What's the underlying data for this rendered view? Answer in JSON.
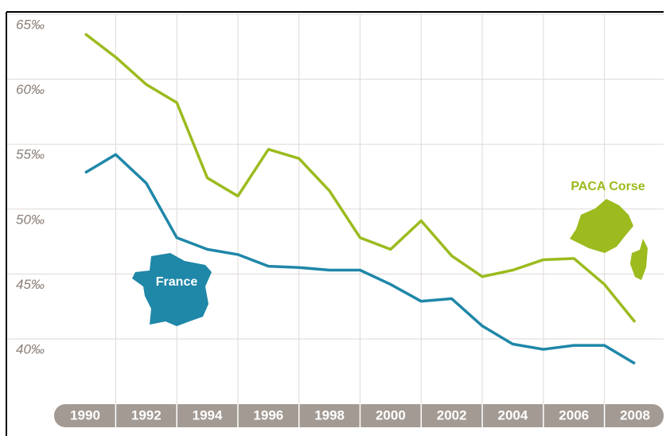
{
  "chart_data": {
    "type": "line",
    "x": [
      1990,
      1991,
      1992,
      1993,
      1994,
      1995,
      1996,
      1997,
      1998,
      1999,
      2000,
      2001,
      2002,
      2003,
      2004,
      2005,
      2006,
      2007,
      2008
    ],
    "series": [
      {
        "name": "PACA Corse",
        "color": "#9bbb1e",
        "values": [
          63.5,
          61.7,
          59.6,
          58.2,
          52.4,
          51.0,
          54.6,
          53.9,
          51.4,
          47.8,
          46.9,
          49.1,
          46.4,
          44.8,
          45.3,
          46.1,
          46.2,
          44.2,
          41.3
        ]
      },
      {
        "name": "France",
        "color": "#1f87a8",
        "values": [
          52.8,
          54.2,
          52.0,
          47.8,
          46.9,
          46.5,
          45.6,
          45.5,
          45.3,
          45.3,
          44.2,
          42.9,
          43.1,
          41.0,
          39.6,
          39.2,
          39.5,
          39.5,
          38.1
        ]
      }
    ],
    "xlim": [
      1990,
      2008
    ],
    "xticks": [
      1990,
      1992,
      1994,
      1996,
      1998,
      2000,
      2002,
      2004,
      2006,
      2008
    ],
    "ylim": [
      35,
      65
    ],
    "yticks": [
      {
        "value": 40,
        "label": "40‰"
      },
      {
        "value": 45,
        "label": "45‰"
      },
      {
        "value": 50,
        "label": "50‰"
      },
      {
        "value": 55,
        "label": "55‰"
      },
      {
        "value": 60,
        "label": "60‰"
      },
      {
        "value": 65,
        "label": "65‰"
      }
    ],
    "grid": true
  }
}
